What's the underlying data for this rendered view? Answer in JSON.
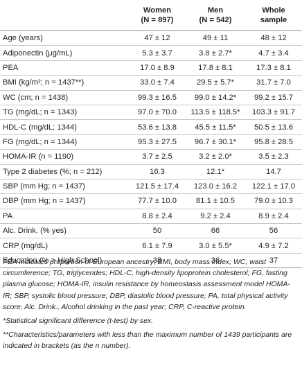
{
  "table": {
    "header": {
      "col1_line1": "Women",
      "col1_line2": "(N = 897)",
      "col2_line1": "Men",
      "col2_line2": "(N = 542)",
      "col3_line1": "Whole",
      "col3_line2": "sample"
    },
    "rows": [
      {
        "label": "Age (years)",
        "women": "47 ± 12",
        "men": "49 ± 11",
        "whole": "48 ± 12"
      },
      {
        "label": "Adiponectin (μg/mL)",
        "women": "5.3 ± 3.7",
        "men": "3.8 ± 2.7*",
        "whole": "4.7 ± 3.4"
      },
      {
        "label": "PEA",
        "women": "17.0 ± 8.9",
        "men": "17.8 ± 8.1",
        "whole": "17.3 ± 8.1"
      },
      {
        "label": "BMI (kg/m²; n = 1437**)",
        "women": "33.0 ± 7.4",
        "men": "29.5 ± 5.7*",
        "whole": "31.7 ± 7.0"
      },
      {
        "label": "WC (cm; n = 1438)",
        "women": "99.3 ± 16.5",
        "men": "99.0 ± 14.2*",
        "whole": "99.2 ± 15.7"
      },
      {
        "label": "TG (mg/dL; n = 1343)",
        "women": "97.0 ± 70.0",
        "men": "113.5 ± 118.5*",
        "whole": "103.3 ± 91.7"
      },
      {
        "label": "HDL-C (mg/dL; 1344)",
        "women": "53.6 ± 13.8",
        "men": "45.5 ± 11.5*",
        "whole": "50.5 ± 13.6"
      },
      {
        "label": "FG (mg/dL; n = 1344)",
        "women": "95.3 ± 27.5",
        "men": "96.7 ± 30.1*",
        "whole": "95.8 ± 28.5"
      },
      {
        "label": "HOMA-IR (n = 1190)",
        "women": "3.7 ± 2.5",
        "men": "3.2 ± 2.0*",
        "whole": "3.5 ± 2.3"
      },
      {
        "label": "Type 2 diabetes (%; n = 212)",
        "women": "16.3",
        "men": "12.1*",
        "whole": "14.7"
      },
      {
        "label": "SBP (mm Hg; n = 1437)",
        "women": "121.5 ± 17.4",
        "men": "123.0 ± 16.2",
        "whole": "122.1 ± 17.0"
      },
      {
        "label": "DBP (mm Hg; n = 1437)",
        "women": "77.7 ± 10.0",
        "men": "81.1 ± 10.5",
        "whole": "79.0 ± 10.3"
      },
      {
        "label": "PA",
        "women": "8.8 ± 2.4",
        "men": "9.2 ± 2.4",
        "whole": "8.9 ± 2.4"
      },
      {
        "label": "Alc. Drink. (% yes)",
        "women": "50",
        "men": "66",
        "whole": "56"
      },
      {
        "label": "CRP (mg/dL)",
        "women": "6.1 ± 7.9",
        "men": "3.0 ± 5.5*",
        "whole": "4.9 ± 7.2"
      },
      {
        "label": "Education (% > High School)",
        "women": "38",
        "men": "36",
        "whole": "37"
      }
    ]
  },
  "notes": {
    "abbreviations": "PEA indicates proportion of European ancestry; BMI, body mass index; WC, waist circumference; TG, triglycerides; HDL-C, high-density lipoprotein cholesterol; FG, fasting plasma glucose; HOMA-IR, insulin resistance by homeostasis assessment model HOMA-IR; SBP, systolic blood pressure; DBP, diastolic blood pressure; PA, total physical activity score; Alc. Drink., Alcohol drinking in the past year; CRP, C-reactive protein.",
    "footnote_1": "*Statistical significant difference (t-test) by sex.",
    "footnote_2": "**Characteristics/parameters with less than the maximum number of 1439 participants are indicated in brackets (as the n number)."
  }
}
